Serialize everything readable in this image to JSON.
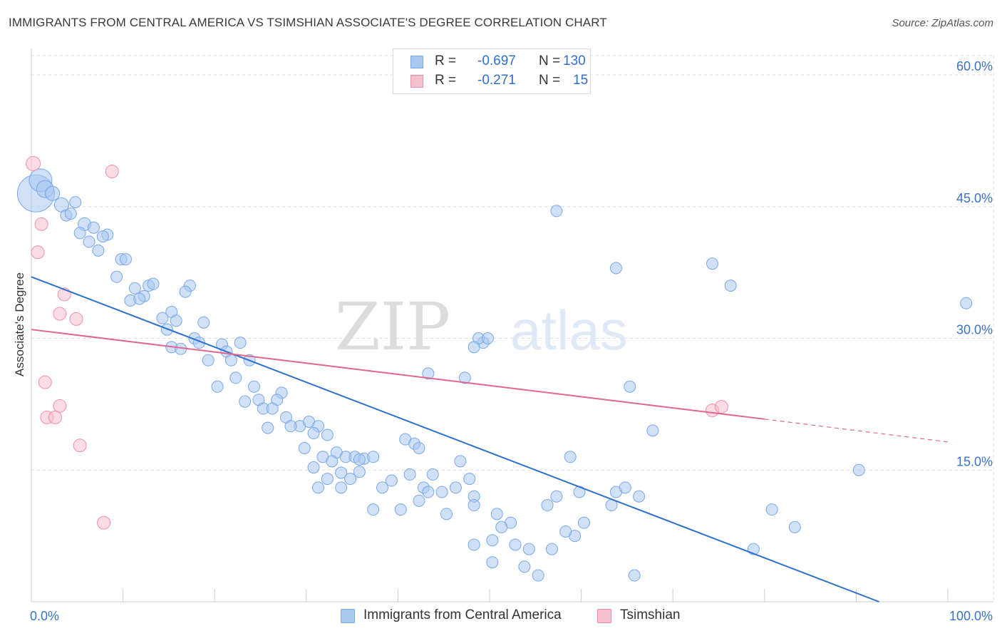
{
  "header": {
    "title": "IMMIGRANTS FROM CENTRAL AMERICA VS TSIMSHIAN ASSOCIATE'S DEGREE CORRELATION CHART",
    "source": "Source: ZipAtlas.com"
  },
  "watermark": {
    "zip": "ZIP",
    "atlas": "atlas"
  },
  "legend": {
    "rows": [
      {
        "r_label": "R =",
        "r_value": "-0.697",
        "n_label": "N =",
        "n_value": "130",
        "color": "#a9c8f0",
        "border": "#7aa8e6"
      },
      {
        "r_label": "R =",
        "r_value": "-0.271",
        "n_label": "N =",
        "n_value": "15",
        "color": "#f7c0d0",
        "border": "#ee8fab"
      }
    ]
  },
  "bottom_legend": {
    "series1": "Immigrants from Central America",
    "series2": "Tsimshian"
  },
  "chart_data": {
    "type": "scatter",
    "title": "IMMIGRANTS FROM CENTRAL AMERICA VS TSIMSHIAN ASSOCIATE'S DEGREE CORRELATION CHART",
    "xlabel": "",
    "ylabel": "Associate's Degree",
    "xlim": [
      0,
      100
    ],
    "ylim": [
      0,
      60
    ],
    "x_tick_labels": [
      "0.0%",
      "100.0%"
    ],
    "y_ticks": [
      15,
      30,
      45,
      60
    ],
    "y_tick_labels": [
      "15.0%",
      "30.0%",
      "45.0%",
      "60.0%"
    ],
    "grid": true,
    "colors": {
      "blue": "#2f6fce",
      "pink": "#e0668f",
      "blue_fill": "#a9c8f0",
      "pink_fill": "#f7c0d0",
      "grid": "#dddddd",
      "axis_text": "#3a72c9"
    },
    "series": [
      {
        "name": "Immigrants from Central America",
        "color": "#a9c8f0",
        "trend": {
          "x": [
            0,
            92.5
          ],
          "y": [
            37.0,
            0.0
          ]
        },
        "points": [
          [
            0.5,
            46.5,
            26
          ],
          [
            1.0,
            48.0,
            16
          ],
          [
            1.5,
            47.0,
            12
          ],
          [
            2.3,
            46.5,
            10
          ],
          [
            3.3,
            45.2,
            10
          ],
          [
            4.8,
            45.5,
            8
          ],
          [
            3.8,
            44.0,
            8
          ],
          [
            4.3,
            44.2,
            8
          ],
          [
            5.8,
            43.0,
            9
          ],
          [
            6.8,
            42.6,
            8
          ],
          [
            5.3,
            42.0,
            8
          ],
          [
            8.3,
            41.8,
            8
          ],
          [
            7.8,
            41.6,
            8
          ],
          [
            6.3,
            41.0,
            8
          ],
          [
            7.3,
            40.0,
            8
          ],
          [
            9.8,
            39.0,
            8
          ],
          [
            10.3,
            39.0,
            8
          ],
          [
            9.3,
            37.0,
            8
          ],
          [
            11.3,
            35.7,
            8
          ],
          [
            12.8,
            36.0,
            8
          ],
          [
            13.3,
            36.2,
            8
          ],
          [
            17.3,
            36.0,
            8
          ],
          [
            16.8,
            35.3,
            8
          ],
          [
            12.3,
            34.8,
            8
          ],
          [
            10.8,
            34.3,
            8
          ],
          [
            11.8,
            34.5,
            8
          ],
          [
            15.3,
            33.0,
            8
          ],
          [
            14.3,
            32.3,
            8
          ],
          [
            15.8,
            32.0,
            8
          ],
          [
            18.8,
            31.8,
            8
          ],
          [
            14.8,
            31.0,
            8
          ],
          [
            17.8,
            30.0,
            8
          ],
          [
            18.3,
            29.5,
            8
          ],
          [
            20.8,
            29.3,
            8
          ],
          [
            22.8,
            29.5,
            8
          ],
          [
            15.3,
            29.0,
            8
          ],
          [
            16.3,
            28.8,
            8
          ],
          [
            21.3,
            28.5,
            8
          ],
          [
            19.3,
            27.5,
            8
          ],
          [
            21.8,
            27.5,
            8
          ],
          [
            23.8,
            27.5,
            8
          ],
          [
            20.3,
            24.5,
            8
          ],
          [
            22.3,
            25.5,
            8
          ],
          [
            24.3,
            24.5,
            8
          ],
          [
            27.3,
            23.8,
            8
          ],
          [
            26.8,
            23.0,
            8
          ],
          [
            23.3,
            22.8,
            8
          ],
          [
            24.8,
            23.0,
            8
          ],
          [
            25.3,
            22.0,
            8
          ],
          [
            26.3,
            22.0,
            8
          ],
          [
            27.8,
            21.0,
            8
          ],
          [
            25.8,
            19.8,
            8
          ],
          [
            29.3,
            20.0,
            8
          ],
          [
            28.3,
            20.0,
            8
          ],
          [
            30.3,
            20.5,
            8
          ],
          [
            31.3,
            20.0,
            8
          ],
          [
            30.8,
            19.2,
            8
          ],
          [
            32.3,
            19.0,
            8
          ],
          [
            29.8,
            17.5,
            8
          ],
          [
            31.8,
            16.5,
            8
          ],
          [
            33.3,
            17.0,
            8
          ],
          [
            34.3,
            16.5,
            8
          ],
          [
            35.3,
            16.5,
            8
          ],
          [
            36.3,
            16.3,
            8
          ],
          [
            35.8,
            16.2,
            8
          ],
          [
            37.3,
            16.5,
            8
          ],
          [
            32.8,
            16.0,
            8
          ],
          [
            30.8,
            15.3,
            8
          ],
          [
            33.8,
            14.7,
            8
          ],
          [
            35.8,
            14.8,
            8
          ],
          [
            32.3,
            14.0,
            8
          ],
          [
            34.8,
            14.0,
            8
          ],
          [
            31.3,
            13.0,
            8
          ],
          [
            33.8,
            13.0,
            8
          ],
          [
            38.3,
            13.0,
            8
          ],
          [
            39.3,
            13.8,
            8
          ],
          [
            40.8,
            18.5,
            8
          ],
          [
            41.8,
            18.0,
            8
          ],
          [
            42.3,
            17.5,
            8
          ],
          [
            41.3,
            14.5,
            8
          ],
          [
            43.8,
            14.5,
            8
          ],
          [
            42.8,
            13.0,
            8
          ],
          [
            43.3,
            12.5,
            8
          ],
          [
            44.8,
            12.5,
            8
          ],
          [
            42.3,
            11.5,
            8
          ],
          [
            40.3,
            10.5,
            8
          ],
          [
            37.3,
            10.5,
            8
          ],
          [
            45.3,
            10.0,
            8
          ],
          [
            46.8,
            16.0,
            8
          ],
          [
            47.8,
            14.0,
            8
          ],
          [
            46.3,
            13.0,
            8
          ],
          [
            48.3,
            12.0,
            8
          ],
          [
            48.3,
            11.0,
            8
          ],
          [
            50.8,
            10.0,
            8
          ],
          [
            52.3,
            9.0,
            8
          ],
          [
            51.3,
            8.5,
            8
          ],
          [
            50.3,
            7.0,
            8
          ],
          [
            52.8,
            6.5,
            8
          ],
          [
            48.3,
            6.5,
            8
          ],
          [
            54.3,
            6.0,
            8
          ],
          [
            50.3,
            4.5,
            8
          ],
          [
            53.8,
            4.0,
            8
          ],
          [
            55.3,
            3.0,
            8
          ],
          [
            56.8,
            6.0,
            8
          ],
          [
            59.3,
            7.5,
            8
          ],
          [
            58.3,
            8.0,
            8
          ],
          [
            60.3,
            9.0,
            8
          ],
          [
            56.3,
            11.0,
            8
          ],
          [
            57.3,
            12.0,
            8
          ],
          [
            59.8,
            12.5,
            8
          ],
          [
            58.8,
            16.5,
            8
          ],
          [
            63.8,
            12.5,
            8
          ],
          [
            63.3,
            11.0,
            8
          ],
          [
            64.8,
            13.0,
            8
          ],
          [
            66.3,
            12.0,
            8
          ],
          [
            65.8,
            3.0,
            8
          ],
          [
            63.8,
            38.0,
            8
          ],
          [
            57.3,
            44.5,
            8
          ],
          [
            47.3,
            25.5,
            8
          ],
          [
            43.3,
            26.0,
            8
          ],
          [
            49.3,
            29.5,
            8
          ],
          [
            48.8,
            30.0,
            8
          ],
          [
            48.3,
            29.0,
            8
          ],
          [
            49.8,
            30.0,
            8
          ],
          [
            65.3,
            24.5,
            8
          ],
          [
            67.8,
            19.5,
            8
          ],
          [
            74.3,
            38.5,
            8
          ],
          [
            76.3,
            36.0,
            8
          ],
          [
            102.0,
            34.0,
            8
          ],
          [
            90.3,
            15.0,
            8
          ],
          [
            80.8,
            10.5,
            8
          ],
          [
            83.3,
            8.5,
            8
          ],
          [
            78.8,
            6.0,
            8
          ]
        ]
      },
      {
        "name": "Tsimshian",
        "color": "#f7c0d0",
        "trend": {
          "x": [
            0,
            80
          ],
          "y": [
            31.0,
            20.8
          ]
        },
        "trend_dashed": {
          "x": [
            80,
            100
          ],
          "y": [
            20.8,
            18.2
          ]
        },
        "points": [
          [
            0.2,
            49.9,
            10
          ],
          [
            8.8,
            49.0,
            9
          ],
          [
            1.1,
            43.0,
            9
          ],
          [
            0.7,
            39.8,
            9
          ],
          [
            3.6,
            35.0,
            9
          ],
          [
            3.1,
            32.8,
            9
          ],
          [
            4.9,
            32.2,
            9
          ],
          [
            1.5,
            25.0,
            9
          ],
          [
            3.1,
            22.3,
            9
          ],
          [
            1.7,
            21.0,
            9
          ],
          [
            2.6,
            21.0,
            9
          ],
          [
            5.3,
            17.8,
            9
          ],
          [
            7.9,
            9.0,
            9
          ],
          [
            74.3,
            21.8,
            9
          ],
          [
            75.3,
            22.2,
            9
          ]
        ]
      }
    ]
  }
}
